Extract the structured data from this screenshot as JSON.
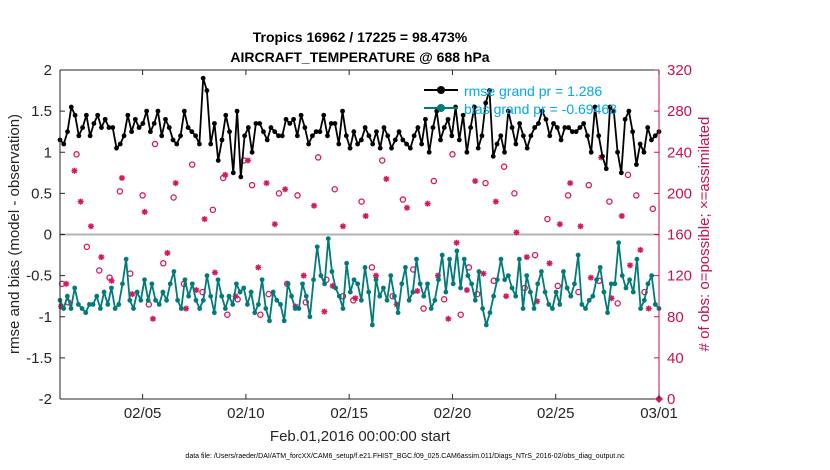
{
  "chart_data": {
    "type": "line",
    "title_line1": "Tropics 16962 / 17225 = 98.473%",
    "title_line2": "AIRCRAFT_TEMPERATURE @ 688 hPa",
    "xlabel": "Feb.01,2016 00:00:00 start",
    "ylabel_left": "rmse and bias (model - observation)",
    "ylabel_right": "# of obs: o=possible; ×=assimilated",
    "footnote": "data file: /Users/raeder/DAI/ATM_forcXX/CAM6_setup/f.e21.FHIST_BGC.f09_025.CAM6assim.011/Diags_NTrS_2016-02/obs_diag_output.nc",
    "xlim": [
      1.0,
      30.0
    ],
    "ylim_left": [
      -2,
      2
    ],
    "ylim_right": [
      0,
      320
    ],
    "x_ticks": [
      {
        "value": 5,
        "label": "02/05"
      },
      {
        "value": 10,
        "label": "02/10"
      },
      {
        "value": 15,
        "label": "02/15"
      },
      {
        "value": 20,
        "label": "02/20"
      },
      {
        "value": 25,
        "label": "02/25"
      },
      {
        "value": 30,
        "label": "03/01"
      }
    ],
    "y_ticks_left": [
      "-2",
      "-1.5",
      "-1",
      "-0.5",
      "0",
      "0.5",
      "1",
      "1.5",
      "2"
    ],
    "y_ticks_right": [
      "0",
      "40",
      "80",
      "120",
      "160",
      "200",
      "240",
      "280",
      "320"
    ],
    "zero_line": 0,
    "series": [
      {
        "name": "rmse grand pr = 1.286",
        "color": "#000000",
        "axis": "left",
        "values": [
          1.15,
          1.1,
          1.25,
          1.55,
          1.45,
          1.2,
          1.3,
          1.45,
          1.2,
          1.35,
          1.45,
          1.3,
          1.4,
          1.3,
          1.3,
          1.05,
          1.1,
          1.2,
          1.45,
          1.25,
          1.4,
          1.3,
          1.35,
          1.5,
          1.25,
          1.35,
          1.5,
          1.2,
          1.4,
          1.3,
          1.15,
          1.1,
          1.2,
          1.5,
          1.3,
          1.25,
          1.2,
          1.1,
          1.9,
          1.75,
          1.1,
          1.35,
          0.9,
          1.15,
          1.45,
          1.25,
          0.75,
          1.5,
          0.7,
          1.2,
          1.3,
          1.0,
          1.35,
          1.35,
          1.25,
          1.15,
          1.3,
          1.25,
          1.2,
          1.2,
          1.4,
          1.35,
          1.4,
          1.2,
          1.45,
          1.3,
          1.1,
          1.2,
          1.25,
          1.25,
          1.45,
          1.2,
          1.35,
          1.35,
          1.1,
          1.5,
          1.2,
          1.05,
          1.25,
          1.1,
          1.15,
          1.3,
          1.2,
          1.1,
          1.25,
          1.05,
          1.3,
          1.2,
          1.05,
          1.15,
          1.25,
          1.15,
          1.1,
          1.05,
          1.2,
          1.3,
          1.1,
          1.4,
          1.0,
          1.3,
          1.5,
          1.15,
          1.3,
          1.4,
          1.2,
          1.55,
          1.15,
          1.45,
          1.0,
          1.3,
          1.55,
          1.05,
          1.2,
          1.6,
          1.75,
          0.95,
          1.1,
          1.2,
          1.0,
          1.5,
          1.3,
          1.1,
          1.35,
          1.2,
          1.05,
          1.2,
          1.3,
          1.35,
          1.5,
          1.4,
          1.2,
          1.35,
          1.3,
          1.15,
          1.3,
          1.3,
          1.25,
          1.25,
          1.3,
          1.35,
          1.2,
          1.0,
          1.55,
          1.2,
          0.95,
          0.8,
          1.55,
          1.5,
          1.0,
          0.75,
          1.4,
          1.5,
          1.25,
          0.85,
          1.1,
          1.0,
          1.3,
          1.15,
          1.2,
          1.25
        ]
      },
      {
        "name": "bias grand pr = -0.69463",
        "color": "#007a7a",
        "axis": "left",
        "values": [
          -0.8,
          -0.9,
          -0.75,
          -0.9,
          -0.65,
          -0.85,
          -0.9,
          -0.95,
          -0.85,
          -0.85,
          -0.75,
          -0.9,
          -0.7,
          -0.85,
          -0.65,
          -0.9,
          -0.85,
          -0.6,
          -0.3,
          -0.8,
          -0.9,
          -0.7,
          -0.8,
          -0.55,
          -0.8,
          -0.6,
          -0.8,
          -0.85,
          -0.7,
          -0.8,
          -0.6,
          -0.45,
          -0.8,
          -0.9,
          -0.55,
          -0.75,
          -0.6,
          -0.8,
          -0.9,
          -0.8,
          -0.5,
          -0.75,
          -0.95,
          -0.55,
          -0.75,
          -0.9,
          -0.75,
          -0.85,
          -0.6,
          -0.7,
          -0.65,
          -0.85,
          -0.7,
          -0.95,
          -0.85,
          -0.55,
          -0.9,
          -1.05,
          -0.7,
          -0.8,
          -0.85,
          -1.05,
          -0.6,
          -0.75,
          -0.9,
          -0.9,
          -0.6,
          -0.75,
          -1.0,
          -0.55,
          -0.15,
          -0.5,
          -0.6,
          -0.05,
          -0.45,
          -0.65,
          -0.75,
          -0.9,
          -0.35,
          -0.7,
          -0.55,
          -0.6,
          -0.8,
          -0.4,
          -0.7,
          -1.1,
          -0.55,
          -0.75,
          -0.65,
          -0.8,
          -0.5,
          -0.75,
          -0.95,
          -0.6,
          -0.4,
          -0.8,
          -0.7,
          -0.3,
          -0.6,
          -0.75,
          -0.6,
          -0.9,
          -0.8,
          -0.55,
          -0.25,
          -0.7,
          -0.3,
          -0.6,
          -0.2,
          -0.65,
          -0.3,
          -0.5,
          -0.6,
          -0.8,
          -0.45,
          -0.9,
          -1.1,
          -0.95,
          -0.75,
          -0.55,
          -0.3,
          -0.55,
          -0.5,
          -0.65,
          -0.75,
          -0.3,
          -0.9,
          -0.5,
          -0.7,
          -0.9,
          -0.6,
          -0.45,
          -0.7,
          -0.85,
          -0.9,
          -0.7,
          -0.85,
          -0.45,
          -0.65,
          -0.75,
          -0.6,
          -0.25,
          -0.85,
          -0.9,
          -0.8,
          -0.75,
          -0.55,
          -0.4,
          -0.7,
          -0.95,
          -0.6,
          -0.6,
          -0.1,
          -0.5,
          -0.65,
          -0.55,
          -0.7,
          -0.3,
          -0.9,
          -0.8,
          -0.6,
          -0.5,
          -0.85,
          -0.9
        ]
      }
    ],
    "obs_possible": {
      "name": "o=possible",
      "color": "#d41a5e",
      "axis": "right",
      "x": [
        1.1,
        1.4,
        1.8,
        2.3,
        2.9,
        3.4,
        3.9,
        4.4,
        5.0,
        5.3,
        5.6,
        6.0,
        6.5,
        7.0,
        7.4,
        7.9,
        8.4,
        8.9,
        9.1,
        9.6,
        9.9,
        10.3,
        10.7,
        11.1,
        11.6,
        12.0,
        12.5,
        12.9,
        13.5,
        13.9,
        14.3,
        14.7,
        15.2,
        15.6,
        16.1,
        16.6,
        17.1,
        17.6,
        18.1,
        18.6,
        19.1,
        19.6,
        20.0,
        20.4,
        20.8,
        21.2,
        21.6,
        22.0,
        22.5,
        23.0,
        23.5,
        24.0,
        24.6,
        25.1,
        25.6,
        26.1,
        26.6,
        27.1,
        27.6,
        28.0,
        28.5,
        28.9,
        29.3,
        29.7
      ],
      "values": [
        112,
        94,
        238,
        148,
        125,
        118,
        202,
        122,
        198,
        92,
        248,
        132,
        196,
        112,
        228,
        104,
        184,
        215,
        82,
        97,
        232,
        208,
        82,
        102,
        200,
        112,
        198,
        94,
        235,
        116,
        204,
        100,
        96,
        192,
        128,
        232,
        100,
        194,
        126,
        88,
        212,
        97,
        238,
        82,
        128,
        102,
        210,
        115,
        226,
        200,
        108,
        140,
        175,
        110,
        198,
        104,
        208,
        115,
        192,
        93,
        218,
        198,
        104,
        185
      ]
    },
    "obs_assimilated": {
      "name": "×=assimilated",
      "color": "#d41a5e",
      "axis": "right",
      "x": [
        1.05,
        1.3,
        1.7,
        2.0,
        2.5,
        3.0,
        3.5,
        4.0,
        4.5,
        5.1,
        5.5,
        6.2,
        6.6,
        7.1,
        7.6,
        8.0,
        8.5,
        9.0,
        9.5,
        10.1,
        10.6,
        11.0,
        11.4,
        11.9,
        12.4,
        12.8,
        13.3,
        13.8,
        14.2,
        14.7,
        15.3,
        15.8,
        16.3,
        16.8,
        17.3,
        17.8,
        18.3,
        18.8,
        19.3,
        19.8,
        20.2,
        20.7,
        21.1,
        21.5,
        22.1,
        22.6,
        23.1,
        23.6,
        24.1,
        24.7,
        25.2,
        25.7,
        26.2,
        26.7,
        27.2,
        27.7,
        28.2,
        28.6,
        29.1,
        29.5
      ],
      "values": [
        90,
        112,
        222,
        192,
        168,
        138,
        115,
        215,
        102,
        182,
        78,
        142,
        210,
        88,
        106,
        175,
        123,
        218,
        100,
        232,
        128,
        210,
        170,
        204,
        90,
        120,
        188,
        85,
        110,
        168,
        98,
        178,
        120,
        214,
        92,
        186,
        105,
        190,
        120,
        78,
        152,
        106,
        212,
        122,
        192,
        100,
        162,
        138,
        95,
        132,
        170,
        210,
        168,
        118,
        235,
        98,
        178,
        130,
        145,
        88
      ]
    }
  }
}
